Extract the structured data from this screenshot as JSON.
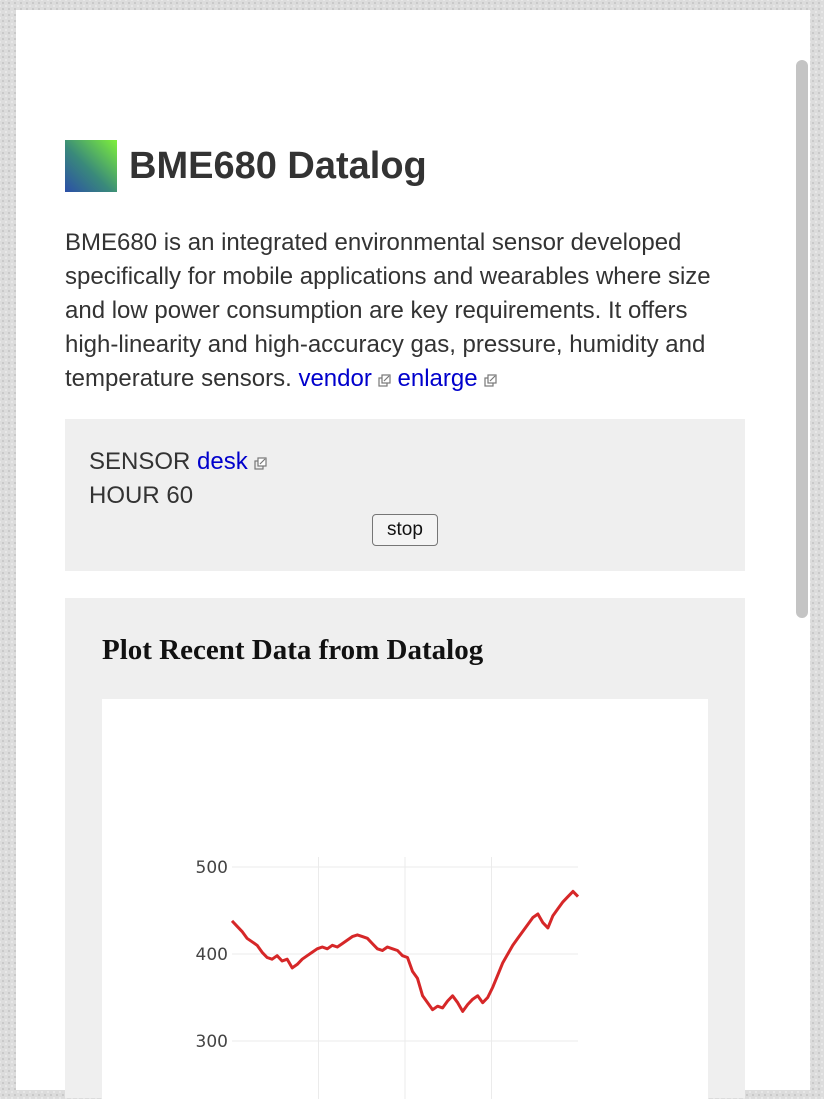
{
  "header": {
    "title": "BME680 Datalog",
    "logo_colors": [
      "#2b4fa8",
      "#7ef03a"
    ]
  },
  "description": {
    "text": "BME680 is an integrated environmental sensor developed specifically for mobile applications and wearables where size and low power consumption are key requirements. It offers high-linearity and high-accuracy gas, pressure, humidity and temperature sensors.",
    "links": [
      {
        "label": "vendor",
        "icon": "external-link-icon"
      },
      {
        "label": "enlarge",
        "icon": "external-link-icon"
      }
    ]
  },
  "sensor": {
    "sensor_label": "SENSOR",
    "sensor_link": "desk",
    "hour_label": "HOUR",
    "hour_value": "60",
    "stop_label": "stop"
  },
  "plot": {
    "title": "Plot Recent Data from Datalog"
  },
  "colors": {
    "link": "#0000cc",
    "line": "#d62728",
    "panel": "#efefef"
  },
  "chart_data": {
    "type": "line",
    "title": "",
    "xlabel": "",
    "ylabel": "",
    "ylim_visible": [
      300,
      500
    ],
    "yticks": [
      300,
      400,
      500
    ],
    "x_gridlines": 4,
    "grid": true,
    "series": [
      {
        "values": [
          438,
          432,
          426,
          418,
          414,
          410,
          402,
          396,
          394,
          398,
          392,
          394,
          384,
          388,
          394,
          398,
          402,
          406,
          408,
          406,
          410,
          408,
          412,
          416,
          420,
          422,
          420,
          418,
          412,
          406,
          404,
          408,
          406,
          404,
          398,
          396,
          380,
          372,
          352,
          344,
          336,
          340,
          338,
          346,
          352,
          344,
          334,
          342,
          348,
          352,
          344,
          350,
          362,
          376,
          390,
          400,
          410,
          418,
          426,
          434,
          442,
          446,
          436,
          430,
          444,
          452,
          460,
          466,
          472,
          466
        ]
      }
    ]
  }
}
